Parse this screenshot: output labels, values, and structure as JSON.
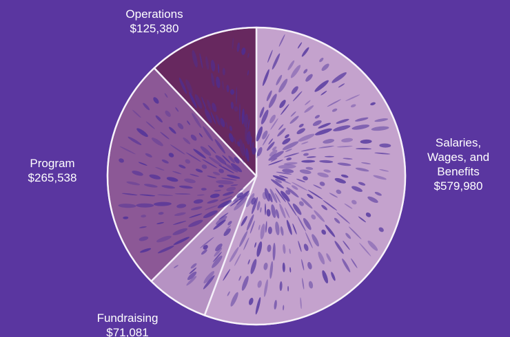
{
  "chart_data": {
    "type": "pie",
    "title": "",
    "slices": [
      {
        "label": "Salaries, Wages, and Benefits",
        "label_lines": [
          "Salaries,",
          "Wages, and",
          "Benefits"
        ],
        "amount": "$579,980",
        "value": 579980,
        "color": "#c4a2cd"
      },
      {
        "label": "Fundraising",
        "label_lines": [
          "Fundraising"
        ],
        "amount": "$71,081",
        "value": 71081,
        "color": "#b692c3"
      },
      {
        "label": "Program",
        "label_lines": [
          "Program"
        ],
        "amount": "$265,538",
        "value": 265538,
        "color": "#8c5896"
      },
      {
        "label": "Operations",
        "label_lines": [
          "Operations"
        ],
        "amount": "$125,380",
        "value": 125380,
        "color": "#67285f"
      }
    ],
    "start_angle_deg": 0,
    "direction": "clockwise",
    "legend": "none",
    "background": "#5a36a0",
    "label_color": "#ffffff"
  }
}
